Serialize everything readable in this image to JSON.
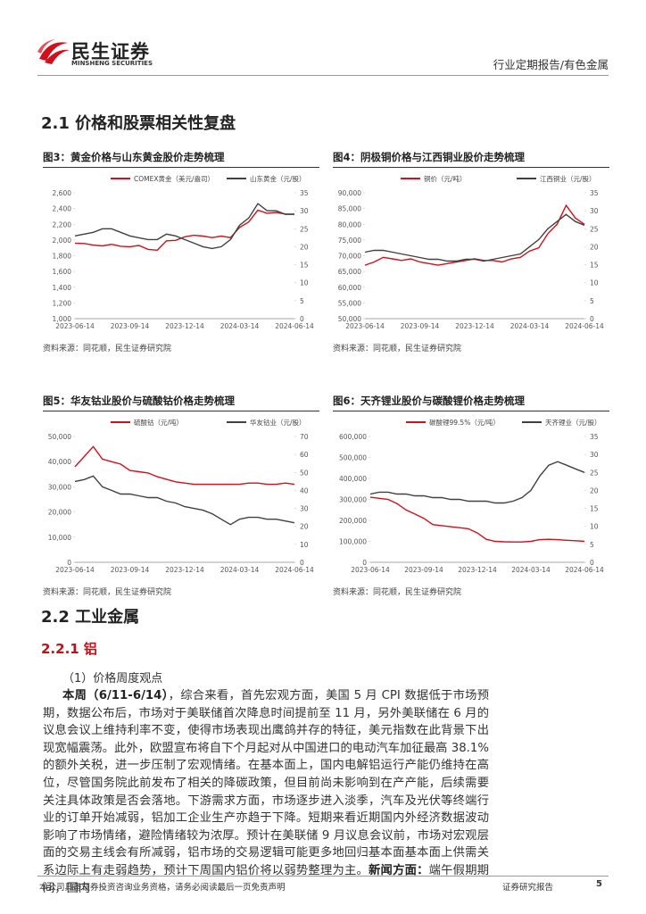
{
  "header": {
    "logo_cn": "民生证券",
    "logo_en": "MINSHENG SECURITIES",
    "report_type": "行业定期报告/有色金属"
  },
  "section_title": "2.1 价格和股票相关性复盘",
  "figures": [
    {
      "title": "图3：黄金价格与山东黄金股价走势梳理",
      "source": "资料来源：同花顺，民生证券研究院",
      "chart_data": {
        "type": "line",
        "x": [
          "2023-06-14",
          null,
          null,
          null,
          null,
          null,
          "2023-09-14",
          null,
          null,
          null,
          null,
          null,
          "2023-12-14",
          null,
          null,
          null,
          null,
          null,
          "2024-03-14",
          null,
          null,
          null,
          null,
          null,
          "2024-06-14"
        ],
        "series": [
          {
            "name": "COMEX黄金（美元/盎司）",
            "color": "#d0101c",
            "axis": "y",
            "values": [
              1960,
              1955,
              1935,
              1925,
              1945,
              1920,
              1915,
              1930,
              1880,
              1870,
              1990,
              1995,
              2040,
              2060,
              2050,
              2030,
              2050,
              2030,
              2160,
              2230,
              2380,
              2340,
              2350,
              2330,
              2330
            ]
          },
          {
            "name": "山东黄金（元/股）",
            "color": "#404040",
            "axis": "y2",
            "values": [
              23,
              23.5,
              24,
              25,
              25,
              24,
              23,
              22.5,
              22,
              22,
              23.5,
              23,
              22,
              21,
              20,
              19.5,
              20,
              22,
              26,
              28,
              32,
              30,
              30,
              29,
              29
            ]
          }
        ],
        "ylim": [
          1000,
          2600
        ],
        "yticks": [
          {
            "value": 1000,
            "label": "1,000"
          },
          {
            "value": 1200,
            "label": "1,200"
          },
          {
            "value": 1400,
            "label": "1,400"
          },
          {
            "value": 1600,
            "label": "1,600"
          },
          {
            "value": 1800,
            "label": "1,800"
          },
          {
            "value": 2000,
            "label": "2,000"
          },
          {
            "value": 2200,
            "label": "2,200"
          },
          {
            "value": 2400,
            "label": "2,400"
          },
          {
            "value": 2600,
            "label": "2,600"
          }
        ],
        "y2lim": [
          0,
          35
        ],
        "y2ticks": [
          0,
          5,
          10,
          15,
          20,
          25,
          30,
          35
        ]
      }
    },
    {
      "title": "图4：阴极铜价格与江西铜业股价走势梳理",
      "source": "资料来源：同花顺，民生证券研究院",
      "chart_data": {
        "type": "line",
        "x": [
          "2023-06-14",
          null,
          null,
          null,
          null,
          null,
          "2023-09-14",
          null,
          null,
          null,
          null,
          null,
          "2023-12-14",
          null,
          null,
          null,
          null,
          null,
          "2024-03-14",
          null,
          null,
          null,
          null,
          null,
          "2024-06-14"
        ],
        "series": [
          {
            "name": "铜价（元/吨）",
            "color": "#d0101c",
            "axis": "y",
            "values": [
              67000,
              68000,
              69500,
              69000,
              68500,
              69000,
              68000,
              67500,
              67000,
              67500,
              68000,
              68500,
              69000,
              68500,
              68500,
              68000,
              69000,
              69500,
              71500,
              72500,
              77000,
              80000,
              86000,
              82000,
              80000
            ]
          },
          {
            "name": "江西铜业（元/股）",
            "color": "#404040",
            "axis": "y2",
            "values": [
              18.5,
              19,
              19,
              18.5,
              18,
              17.5,
              17,
              16.5,
              16.5,
              16,
              16,
              16.5,
              16.5,
              16,
              16.5,
              17,
              17.5,
              18,
              20,
              22,
              25,
              27,
              29,
              27,
              26
            ]
          }
        ],
        "ylim": [
          50000,
          90000
        ],
        "yticks": [
          {
            "value": 50000,
            "label": "50,000"
          },
          {
            "value": 55000,
            "label": "55,000"
          },
          {
            "value": 60000,
            "label": "60,000"
          },
          {
            "value": 65000,
            "label": "65,000"
          },
          {
            "value": 70000,
            "label": "70,000"
          },
          {
            "value": 75000,
            "label": "75,000"
          },
          {
            "value": 80000,
            "label": "80,000"
          },
          {
            "value": 85000,
            "label": "85,000"
          },
          {
            "value": 90000,
            "label": "90,000"
          }
        ],
        "y2lim": [
          0,
          35
        ],
        "y2ticks": [
          0,
          5,
          10,
          15,
          20,
          25,
          30,
          35
        ]
      }
    },
    {
      "title": "图5：华友钴业股价与硫酸钴价格走势梳理",
      "source": "资料来源：同花顺，民生证券研究院",
      "chart_data": {
        "type": "line",
        "x": [
          "2023-06-14",
          null,
          null,
          null,
          null,
          null,
          "2023-09-14",
          null,
          null,
          null,
          null,
          null,
          "2023-12-14",
          null,
          null,
          null,
          null,
          null,
          "2024-03-14",
          null,
          null,
          null,
          null,
          null,
          "2024-06-14"
        ],
        "series": [
          {
            "name": "硫酸钴（元/吨）",
            "color": "#d0101c",
            "axis": "y",
            "values": [
              38000,
              42000,
              46000,
              41000,
              40000,
              39000,
              36500,
              36000,
              35500,
              34000,
              33000,
              32000,
              31500,
              31000,
              31000,
              31000,
              31000,
              31000,
              31000,
              31500,
              31500,
              31000,
              31000,
              31500,
              31000
            ]
          },
          {
            "name": "华友钴业（元/股）",
            "color": "#404040",
            "axis": "y2",
            "values": [
              45,
              46,
              48,
              42,
              40,
              38,
              38,
              37,
              36,
              36,
              34,
              33,
              31,
              30,
              29,
              27,
              24,
              21,
              24,
              25,
              25,
              24,
              24,
              23,
              22
            ]
          }
        ],
        "ylim": [
          0,
          50000
        ],
        "yticks": [
          0,
          {
            "value": 10000,
            "label": "10,000"
          },
          {
            "value": 20000,
            "label": "20,000"
          },
          {
            "value": 30000,
            "label": "30,000"
          },
          {
            "value": 40000,
            "label": "40,000"
          },
          {
            "value": 50000,
            "label": "50,000"
          }
        ],
        "y2lim": [
          0,
          70
        ],
        "y2ticks": [
          0,
          10,
          20,
          30,
          40,
          50,
          60,
          70
        ]
      }
    },
    {
      "title": "图6：天齐锂业股价与碳酸锂价格走势梳理",
      "source": "资料来源：同花顺，民生证券研究院",
      "chart_data": {
        "type": "line",
        "x": [
          "2023-06-14",
          null,
          null,
          null,
          null,
          null,
          "2023-09-14",
          null,
          null,
          null,
          null,
          null,
          "2023-12-14",
          null,
          null,
          null,
          null,
          null,
          "2024-03-14",
          null,
          null,
          null,
          null,
          null,
          "2024-06-14"
        ],
        "series": [
          {
            "name": "碳酸锂99.5%（元/吨）",
            "color": "#d0101c",
            "axis": "y",
            "values": [
              310000,
              305000,
              300000,
              280000,
              250000,
              230000,
              210000,
              180000,
              175000,
              170000,
              165000,
              160000,
              140000,
              110000,
              100000,
              98000,
              97000,
              97000,
              100000,
              108000,
              110000,
              108000,
              105000,
              103000,
              100000
            ]
          },
          {
            "name": "天齐锂业（元/股）",
            "color": "#404040",
            "axis": "y2",
            "values": [
              19,
              19.5,
              19.5,
              19,
              19,
              18.5,
              18.5,
              18,
              18,
              17.5,
              17.5,
              17,
              17,
              17,
              16.5,
              16.5,
              17,
              18,
              20,
              24,
              27,
              28,
              27,
              26,
              25
            ]
          }
        ],
        "ylim": [
          0,
          600000
        ],
        "yticks": [
          0,
          {
            "value": 100000,
            "label": "100,000"
          },
          {
            "value": 200000,
            "label": "200,000"
          },
          {
            "value": 300000,
            "label": "300,000"
          },
          {
            "value": 400000,
            "label": "400,000"
          },
          {
            "value": 500000,
            "label": "500,000"
          },
          {
            "value": 600000,
            "label": "600,000"
          }
        ],
        "y2lim": [
          0,
          35
        ],
        "y2ticks": [
          0,
          5,
          10,
          15,
          20,
          25,
          30,
          35
        ]
      }
    }
  ],
  "section2_title": "2.2 工业金属",
  "subsection_title": "2.2.1 铝",
  "item_heading": "（1）价格周度观点",
  "paragraph": [
    "本周（6/11-6/14）",
    "，综合来看，首先宏观方面，美国 5 月 CPI 数据低于市场预期，数据公布后，市场对于美联储首次降息时间提前至 11 月，另外美联储在 6 月的议息会议上维持利率不变，使得市场表现出鹰鸽并存的特征，美元指数在此背景下出现宽幅震荡。此外，欧盟宣布将自下个月起对从中国进口的电动汽车加征最高 38.1%的额外关税，进一步压制了宏观情绪。在基本面上，国内电解铝运行产能仍维持在高位，尽管国务院此前发布了相关的降碳政策，但目前尚未影响到在产产能，后续需要关注具体政策是否会落地。下游需求方面，市场逐步进入淡季，汽车及光伏等终端行业的订单开始减弱，铝加工企业生产亦趋于下降。短期来看近期国内外经济数据波动影响了市场情绪，避险情绪较为浓厚。预计在美联储 9 月议息会议前，市场对宏观层面的交易主线会有所减弱，铝市场的交易逻辑可能更多地回归基本面基本面上供需关系边际上有走弱趋势，预计下周国内铝价将以弱势整理为主。",
    "新闻方面：",
    "端午假期期间，国内"
  ],
  "footer": {
    "disclaimer": "本公司具备证券投资咨询业务资格，请务必阅读最后一页免责声明",
    "report_label": "证券研究报告",
    "page": 5
  }
}
